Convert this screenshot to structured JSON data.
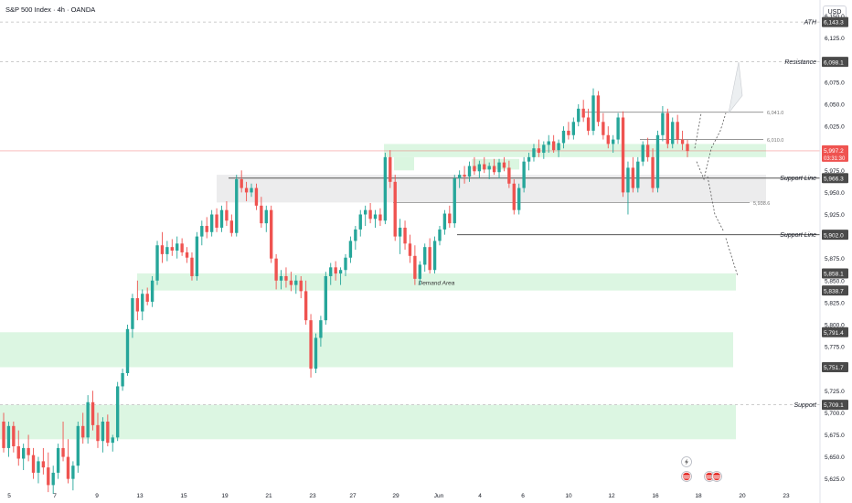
{
  "header": {
    "title": "S&P 500 Index · 4h · OANDA",
    "currency": "USD"
  },
  "colors": {
    "up": "#26a69a",
    "down": "#ef5350",
    "zone_green": "#d6f5dd",
    "zone_gray": "#e9e9ea",
    "label_bg": "#4a4a4a",
    "current_price": "#ef5350"
  },
  "chart_data": {
    "type": "candlestick",
    "title": "S&P 500 Index · 4h · OANDA",
    "x_tick_labels": [
      "5",
      "7",
      "9",
      "13",
      "15",
      "19",
      "21",
      "23",
      "27",
      "29",
      "Jun",
      "4",
      "6",
      "10",
      "12",
      "16",
      "18",
      "20",
      "23"
    ],
    "y_range": [
      5607,
      6160
    ],
    "y_tick_labels": [
      "6,150.0",
      "6,125.0",
      "6,075.0",
      "6,050.0",
      "6,025.0",
      "6,000.0",
      "5,975.0",
      "5,950.0",
      "5,925.0",
      "5,875.0",
      "5,850.0",
      "5,825.0",
      "5,800.0",
      "5,775.0",
      "5,750.0",
      "5,725.0",
      "5,700.0",
      "5,675.0",
      "5,650.0",
      "5,625.0"
    ],
    "y_ticks": [
      6150,
      6125,
      6075,
      6050,
      6025,
      6000,
      5975,
      5950,
      5925,
      5875,
      5850,
      5825,
      5800,
      5775,
      5750,
      5725,
      5700,
      5675,
      5650,
      5625
    ],
    "levels": [
      {
        "label": "ATH",
        "value": 6143.3,
        "price_label": "6,143.3",
        "style": "dashed"
      },
      {
        "label": "Resistance",
        "value": 6098.1,
        "price_label": "6,098.1",
        "style": "dashed"
      },
      {
        "label": "Support Line",
        "value": 5966.3,
        "price_label": "5,966.3",
        "style": "solid"
      },
      {
        "label": "Support  Line",
        "value": 5902.0,
        "price_label": "5,902.0",
        "style": "solid"
      },
      {
        "label": "Support",
        "value": 5709.1,
        "price_label": "5,709.1",
        "style": "dashed"
      }
    ],
    "extra_price_labels": [
      "5,858.1",
      "5,838.7",
      "5,791.4",
      "5,751.7"
    ],
    "current_price": {
      "value": 5997.2,
      "label": "5,997.2",
      "countdown": "03:31:30"
    },
    "small_levels": [
      {
        "value": 6041.0,
        "label": "6,041.0"
      },
      {
        "value": 6010.0,
        "label": "6,010.0"
      },
      {
        "value": 5938.6,
        "label": "5,938.6"
      }
    ],
    "zones": [
      {
        "label": "",
        "top": 6005,
        "bottom": 5990
      },
      {
        "label": "",
        "top": 5970,
        "bottom": 5938.6
      },
      {
        "label": "Demand Area",
        "top": 5858.1,
        "bottom": 5838.7
      },
      {
        "label": "",
        "top": 5791.4,
        "bottom": 5751.7
      },
      {
        "label": "",
        "top": 5709.1,
        "bottom": 5670
      }
    ],
    "candles_ohlc": [
      [
        5690,
        5700,
        5655,
        5660
      ],
      [
        5660,
        5690,
        5650,
        5685
      ],
      [
        5685,
        5690,
        5655,
        5662
      ],
      [
        5662,
        5680,
        5640,
        5648
      ],
      [
        5648,
        5665,
        5635,
        5660
      ],
      [
        5660,
        5675,
        5645,
        5652
      ],
      [
        5652,
        5660,
        5625,
        5632
      ],
      [
        5632,
        5650,
        5620,
        5645
      ],
      [
        5645,
        5660,
        5630,
        5638
      ],
      [
        5638,
        5655,
        5610,
        5618
      ],
      [
        5618,
        5640,
        5608,
        5632
      ],
      [
        5632,
        5665,
        5625,
        5660
      ],
      [
        5660,
        5690,
        5645,
        5650
      ],
      [
        5650,
        5670,
        5620,
        5625
      ],
      [
        5625,
        5645,
        5612,
        5640
      ],
      [
        5640,
        5690,
        5632,
        5685
      ],
      [
        5685,
        5700,
        5665,
        5672
      ],
      [
        5672,
        5720,
        5665,
        5712
      ],
      [
        5712,
        5725,
        5680,
        5686
      ],
      [
        5686,
        5700,
        5660,
        5668
      ],
      [
        5668,
        5695,
        5655,
        5690
      ],
      [
        5690,
        5698,
        5662,
        5666
      ],
      [
        5666,
        5675,
        5656,
        5672
      ],
      [
        5672,
        5735,
        5668,
        5730
      ],
      [
        5730,
        5750,
        5725,
        5745
      ],
      [
        5745,
        5800,
        5742,
        5795
      ],
      [
        5795,
        5835,
        5785,
        5830
      ],
      [
        5830,
        5850,
        5805,
        5815
      ],
      [
        5815,
        5840,
        5805,
        5835
      ],
      [
        5835,
        5842,
        5822,
        5826
      ],
      [
        5826,
        5855,
        5820,
        5850
      ],
      [
        5850,
        5895,
        5845,
        5890
      ],
      [
        5890,
        5905,
        5870,
        5880
      ],
      [
        5880,
        5895,
        5872,
        5888
      ],
      [
        5888,
        5897,
        5878,
        5884
      ],
      [
        5884,
        5900,
        5875,
        5892
      ],
      [
        5892,
        5898,
        5878,
        5882
      ],
      [
        5882,
        5888,
        5870,
        5876
      ],
      [
        5876,
        5882,
        5850,
        5855
      ],
      [
        5855,
        5905,
        5850,
        5900
      ],
      [
        5900,
        5918,
        5890,
        5912
      ],
      [
        5912,
        5922,
        5898,
        5905
      ],
      [
        5905,
        5930,
        5900,
        5925
      ],
      [
        5925,
        5932,
        5905,
        5910
      ],
      [
        5910,
        5935,
        5905,
        5930
      ],
      [
        5930,
        5940,
        5912,
        5918
      ],
      [
        5918,
        5925,
        5900,
        5904
      ],
      [
        5904,
        5970,
        5900,
        5965
      ],
      [
        5965,
        5975,
        5950,
        5955
      ],
      [
        5955,
        5962,
        5940,
        5950
      ],
      [
        5950,
        5960,
        5945,
        5955
      ],
      [
        5955,
        5960,
        5930,
        5935
      ],
      [
        5935,
        5945,
        5910,
        5915
      ],
      [
        5915,
        5935,
        5905,
        5930
      ],
      [
        5930,
        5935,
        5870,
        5875
      ],
      [
        5875,
        5880,
        5840,
        5850
      ],
      [
        5850,
        5862,
        5840,
        5855
      ],
      [
        5855,
        5865,
        5842,
        5850
      ],
      [
        5850,
        5860,
        5838,
        5845
      ],
      [
        5845,
        5856,
        5835,
        5850
      ],
      [
        5850,
        5855,
        5830,
        5838
      ],
      [
        5838,
        5850,
        5800,
        5805
      ],
      [
        5805,
        5812,
        5740,
        5750
      ],
      [
        5750,
        5790,
        5745,
        5785
      ],
      [
        5785,
        5810,
        5775,
        5805
      ],
      [
        5805,
        5860,
        5800,
        5855
      ],
      [
        5855,
        5870,
        5845,
        5865
      ],
      [
        5865,
        5872,
        5850,
        5858
      ],
      [
        5858,
        5865,
        5845,
        5862
      ],
      [
        5862,
        5880,
        5855,
        5876
      ],
      [
        5876,
        5900,
        5870,
        5895
      ],
      [
        5895,
        5912,
        5885,
        5908
      ],
      [
        5908,
        5930,
        5900,
        5925
      ],
      [
        5925,
        5935,
        5912,
        5930
      ],
      [
        5930,
        5938,
        5915,
        5920
      ],
      [
        5920,
        5930,
        5910,
        5925
      ],
      [
        5925,
        5932,
        5912,
        5918
      ],
      [
        5918,
        5995,
        5914,
        5990
      ],
      [
        5990,
        5998,
        5955,
        5962
      ],
      [
        5962,
        5970,
        5895,
        5900
      ],
      [
        5900,
        5920,
        5880,
        5910
      ],
      [
        5910,
        5918,
        5885,
        5892
      ],
      [
        5892,
        5902,
        5870,
        5878
      ],
      [
        5878,
        5890,
        5845,
        5852
      ],
      [
        5852,
        5872,
        5845,
        5868
      ],
      [
        5868,
        5892,
        5860,
        5888
      ],
      [
        5888,
        5898,
        5858,
        5862
      ],
      [
        5862,
        5900,
        5858,
        5895
      ],
      [
        5895,
        5912,
        5890,
        5908
      ],
      [
        5908,
        5930,
        5902,
        5926
      ],
      [
        5926,
        5935,
        5910,
        5915
      ],
      [
        5915,
        5970,
        5910,
        5966
      ],
      [
        5966,
        5975,
        5955,
        5970
      ],
      [
        5970,
        5980,
        5960,
        5968
      ],
      [
        5968,
        5985,
        5962,
        5980
      ],
      [
        5980,
        5990,
        5970,
        5974
      ],
      [
        5974,
        5986,
        5966,
        5982
      ],
      [
        5982,
        5990,
        5972,
        5976
      ],
      [
        5976,
        5984,
        5965,
        5980
      ],
      [
        5980,
        5988,
        5970,
        5973
      ],
      [
        5973,
        5988,
        5966,
        5984
      ],
      [
        5984,
        5990,
        5974,
        5978
      ],
      [
        5978,
        5986,
        5955,
        5960
      ],
      [
        5960,
        5965,
        5925,
        5930
      ],
      [
        5930,
        5960,
        5925,
        5955
      ],
      [
        5955,
        5990,
        5950,
        5985
      ],
      [
        5985,
        5995,
        5975,
        5990
      ],
      [
        5990,
        6005,
        5985,
        6000
      ],
      [
        6000,
        6010,
        5990,
        5995
      ],
      [
        5995,
        6008,
        5988,
        6004
      ],
      [
        6004,
        6015,
        5995,
        6008
      ],
      [
        6008,
        6015,
        5995,
        5998
      ],
      [
        5998,
        6010,
        5990,
        6006
      ],
      [
        6006,
        6025,
        6000,
        6020
      ],
      [
        6020,
        6030,
        6010,
        6015
      ],
      [
        6015,
        6035,
        6010,
        6030
      ],
      [
        6030,
        6050,
        6025,
        6045
      ],
      [
        6045,
        6055,
        6030,
        6035
      ],
      [
        6035,
        6045,
        6015,
        6020
      ],
      [
        6020,
        6068,
        6015,
        6060
      ],
      [
        6060,
        6065,
        6025,
        6030
      ],
      [
        6030,
        6040,
        6010,
        6015
      ],
      [
        6015,
        6025,
        6000,
        6005
      ],
      [
        6005,
        6015,
        5995,
        6010
      ],
      [
        6010,
        6040,
        6005,
        6035
      ],
      [
        6035,
        6042,
        5945,
        5950
      ],
      [
        5950,
        5985,
        5925,
        5978
      ],
      [
        5978,
        5990,
        5950,
        5955
      ],
      [
        5955,
        5990,
        5950,
        5985
      ],
      [
        5985,
        6008,
        5980,
        6004
      ],
      [
        6004,
        6012,
        5985,
        5990
      ],
      [
        5990,
        6000,
        5950,
        5955
      ],
      [
        5955,
        6020,
        5950,
        6015
      ],
      [
        6015,
        6048,
        6008,
        6040
      ],
      [
        6040,
        6045,
        6000,
        6005
      ],
      [
        6005,
        6035,
        6000,
        6030
      ],
      [
        6030,
        6038,
        6005,
        6010
      ],
      [
        6010,
        6020,
        5998,
        6005
      ],
      [
        6005,
        6010,
        5990,
        5997
      ]
    ],
    "projections": "dashed arrow paths from the last candle toward the Resistance and Support Line levels"
  },
  "event_icons": [
    {
      "name": "lightning-icon"
    },
    {
      "name": "us-flag-icon"
    },
    {
      "name": "us-flag-icon"
    },
    {
      "name": "us-flag-icon"
    }
  ]
}
